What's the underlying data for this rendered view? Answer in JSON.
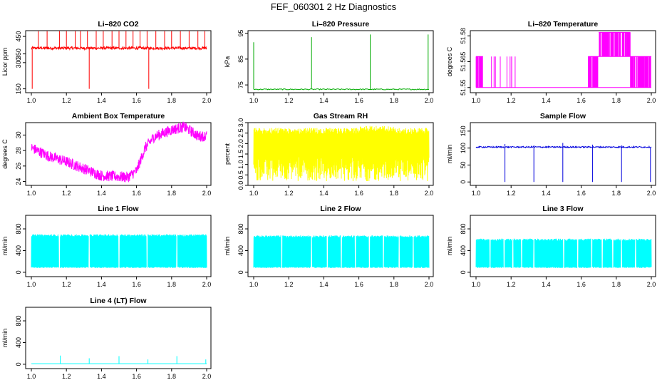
{
  "figure_title": "FEF_060301  2 Hz Diagnostics",
  "chart_data": [
    {
      "type": "line",
      "title": "Li–820 CO2",
      "ylabel": "Licor ppm",
      "color": "#ff0000",
      "x_range": [
        1.0,
        2.0
      ],
      "x_ticks": [
        "1.0",
        "1.2",
        "1.4",
        "1.6",
        "1.8",
        "2.0"
      ],
      "ylim": [
        128,
        483
      ],
      "y_ticks": [
        {
          "v": 150,
          "label": "150"
        },
        {
          "v": 300,
          "label": "300"
        },
        {
          "v": 350,
          "label": "350"
        },
        {
          "v": 450,
          "label": "450"
        }
      ],
      "signal": {
        "kind": "co2",
        "base": 383,
        "noise": 8,
        "spike_top": 480,
        "spike_x": [
          1.04,
          1.09,
          1.16,
          1.2,
          1.25,
          1.28,
          1.32,
          1.37,
          1.41,
          1.46,
          1.5,
          1.54,
          1.58,
          1.62,
          1.66,
          1.71,
          1.76,
          1.8,
          1.85,
          1.9,
          1.95,
          1.99
        ],
        "dips": [
          {
            "x": 1.005,
            "y": 150
          },
          {
            "x": 1.33,
            "y": 150
          },
          {
            "x": 1.67,
            "y": 150
          }
        ]
      }
    },
    {
      "type": "line",
      "title": "Li–820 Pressure",
      "ylabel": "kPa",
      "color": "#00aa00",
      "x_range": [
        1.0,
        2.0
      ],
      "x_ticks": [
        "1.0",
        "1.2",
        "1.4",
        "1.6",
        "1.8",
        "2.0"
      ],
      "ylim": [
        72,
        96
      ],
      "y_ticks": [
        {
          "v": 75,
          "label": "75"
        },
        {
          "v": 85,
          "label": "85"
        },
        {
          "v": 95,
          "label": "95"
        }
      ],
      "signal": {
        "kind": "pressure",
        "base": 73.3,
        "spikes": [
          {
            "x": 1.0,
            "y": 91.5
          },
          {
            "x": 1.33,
            "y": 93.5
          },
          {
            "x": 1.665,
            "y": 94.5
          },
          {
            "x": 1.995,
            "y": 94.5
          }
        ]
      }
    },
    {
      "type": "line",
      "title": "Li–820 Temperature",
      "ylabel": "degrees C",
      "color": "#ff00ff",
      "x_range": [
        1.0,
        2.0
      ],
      "x_ticks": [
        "1.0",
        "1.2",
        "1.4",
        "1.6",
        "1.8",
        "2.0"
      ],
      "ylim": [
        51.547,
        51.583
      ],
      "y_ticks": [
        {
          "v": 51.55,
          "label": "51.55"
        },
        {
          "v": 51.565,
          "label": "51.565"
        },
        {
          "v": 51.58,
          "label": "51.58"
        }
      ],
      "signal": {
        "kind": "temperature",
        "low": 51.55,
        "mid": 51.568,
        "high": 51.582
      }
    },
    {
      "type": "line",
      "title": "Ambient Box Temperature",
      "ylabel": "degrees C",
      "color": "#ff00ff",
      "x_range": [
        1.0,
        2.0
      ],
      "x_ticks": [
        "1.0",
        "1.2",
        "1.4",
        "1.6",
        "1.8",
        "2.0"
      ],
      "ylim": [
        23.5,
        31.6
      ],
      "y_ticks": [
        {
          "v": 24,
          "label": "24"
        },
        {
          "v": 26,
          "label": "26"
        },
        {
          "v": 28,
          "label": "28"
        },
        {
          "v": 30,
          "label": "30"
        }
      ],
      "signal": {
        "kind": "ambient",
        "points": [
          [
            1.0,
            28.5
          ],
          [
            1.1,
            27.4
          ],
          [
            1.2,
            26.7
          ],
          [
            1.3,
            25.8
          ],
          [
            1.4,
            24.9
          ],
          [
            1.55,
            24.7
          ],
          [
            1.6,
            25.5
          ],
          [
            1.65,
            28.5
          ],
          [
            1.7,
            29.9
          ],
          [
            1.8,
            30.8
          ],
          [
            1.87,
            31.2
          ],
          [
            1.9,
            30.8
          ],
          [
            1.95,
            30.0
          ],
          [
            2.0,
            30.0
          ]
        ],
        "band": 1.0
      }
    },
    {
      "type": "line",
      "title": "Gas Stream RH",
      "ylabel": "percent",
      "color": "#ffff00",
      "x_range": [
        1.0,
        2.0
      ],
      "x_ticks": [
        "1.0",
        "1.2",
        "1.4",
        "1.6",
        "1.8",
        "2.0"
      ],
      "ylim": [
        0.0,
        3.0
      ],
      "y_ticks": [
        {
          "v": 0.0,
          "label": "0.0"
        },
        {
          "v": 0.5,
          "label": "0.5"
        },
        {
          "v": 1.0,
          "label": "1.0"
        },
        {
          "v": 1.5,
          "label": "1.5"
        },
        {
          "v": 2.0,
          "label": "2.0"
        },
        {
          "v": 2.5,
          "label": "2.5"
        },
        {
          "v": 3.0,
          "label": "3.0"
        }
      ],
      "signal": {
        "kind": "rh",
        "top": 2.6,
        "bottom": 0.5
      }
    },
    {
      "type": "line",
      "title": "Sample Flow",
      "ylabel": "ml/min",
      "color": "#0000dd",
      "x_range": [
        1.0,
        2.0
      ],
      "x_ticks": [
        "1.0",
        "1.2",
        "1.4",
        "1.6",
        "1.8",
        "2.0"
      ],
      "ylim": [
        -10,
        175
      ],
      "y_ticks": [
        {
          "v": 0,
          "label": "0"
        },
        {
          "v": 50,
          "label": "50"
        },
        {
          "v": 100,
          "label": "100"
        },
        {
          "v": 150,
          "label": "150"
        }
      ],
      "signal": {
        "kind": "sample",
        "base": 103,
        "dips": [
          1.165,
          1.33,
          1.495,
          1.665,
          1.83,
          1.995
        ],
        "dip_to": 0,
        "bumps": [
          {
            "x": 1.165,
            "y": 112
          },
          {
            "x": 1.33,
            "y": 108
          },
          {
            "x": 1.495,
            "y": 115
          },
          {
            "x": 1.665,
            "y": 110
          },
          {
            "x": 1.83,
            "y": 108
          }
        ]
      }
    },
    {
      "type": "line",
      "title": "Line 1 Flow",
      "ylabel": "ml/min",
      "color": "#00ffff",
      "x_range": [
        1.0,
        2.0
      ],
      "x_ticks": [
        "1.0",
        "1.2",
        "1.4",
        "1.6",
        "1.8",
        "2.0"
      ],
      "ylim": [
        -80,
        1050
      ],
      "y_ticks": [
        {
          "v": 0,
          "label": "0"
        },
        {
          "v": 400,
          "label": "400"
        },
        {
          "v": 800,
          "label": "800"
        }
      ],
      "signal": {
        "kind": "flowband",
        "top": 680,
        "bottom": 80,
        "gaps": [
          1.16,
          1.33,
          1.5,
          1.66,
          1.83
        ]
      }
    },
    {
      "type": "line",
      "title": "Line 2 Flow",
      "ylabel": "ml/min",
      "color": "#00ffff",
      "x_range": [
        1.0,
        2.0
      ],
      "x_ticks": [
        "1.0",
        "1.2",
        "1.4",
        "1.6",
        "1.8",
        "2.0"
      ],
      "ylim": [
        -80,
        1050
      ],
      "y_ticks": [
        {
          "v": 0,
          "label": "0"
        },
        {
          "v": 400,
          "label": "400"
        },
        {
          "v": 800,
          "label": "800"
        }
      ],
      "signal": {
        "kind": "flowband",
        "top": 660,
        "bottom": 80,
        "gaps": [
          1.16,
          1.33,
          1.42,
          1.5,
          1.58,
          1.66,
          1.74,
          1.83,
          1.91
        ]
      }
    },
    {
      "type": "line",
      "title": "Line 3 Flow",
      "ylabel": "ml/min",
      "color": "#00ffff",
      "x_range": [
        1.0,
        2.0
      ],
      "x_ticks": [
        "1.0",
        "1.2",
        "1.4",
        "1.6",
        "1.8",
        "2.0"
      ],
      "ylim": [
        -80,
        1050
      ],
      "y_ticks": [
        {
          "v": 0,
          "label": "0"
        },
        {
          "v": 400,
          "label": "400"
        },
        {
          "v": 800,
          "label": "800"
        }
      ],
      "signal": {
        "kind": "flowband",
        "top": 600,
        "bottom": 80,
        "gaps": [
          1.08,
          1.16,
          1.21,
          1.26,
          1.33,
          1.5,
          1.58,
          1.66,
          1.72,
          1.78,
          1.83,
          1.91
        ]
      }
    },
    {
      "type": "line",
      "title": "Line 4 (LT) Flow",
      "ylabel": "ml/min",
      "color": "#00ffff",
      "x_range": [
        1.0,
        2.0
      ],
      "x_ticks": [
        "1.0",
        "1.2",
        "1.4",
        "1.6",
        "1.8",
        "2.0"
      ],
      "ylim": [
        -80,
        1050
      ],
      "y_ticks": [
        {
          "v": 0,
          "label": "0"
        },
        {
          "v": 400,
          "label": "400"
        },
        {
          "v": 800,
          "label": "800"
        }
      ],
      "signal": {
        "kind": "line4",
        "base": 10,
        "spikes": [
          {
            "x": 1.165,
            "y": 160
          },
          {
            "x": 1.33,
            "y": 110
          },
          {
            "x": 1.5,
            "y": 150
          },
          {
            "x": 1.665,
            "y": 90
          },
          {
            "x": 1.83,
            "y": 150
          },
          {
            "x": 1.995,
            "y": 90
          }
        ]
      }
    }
  ]
}
